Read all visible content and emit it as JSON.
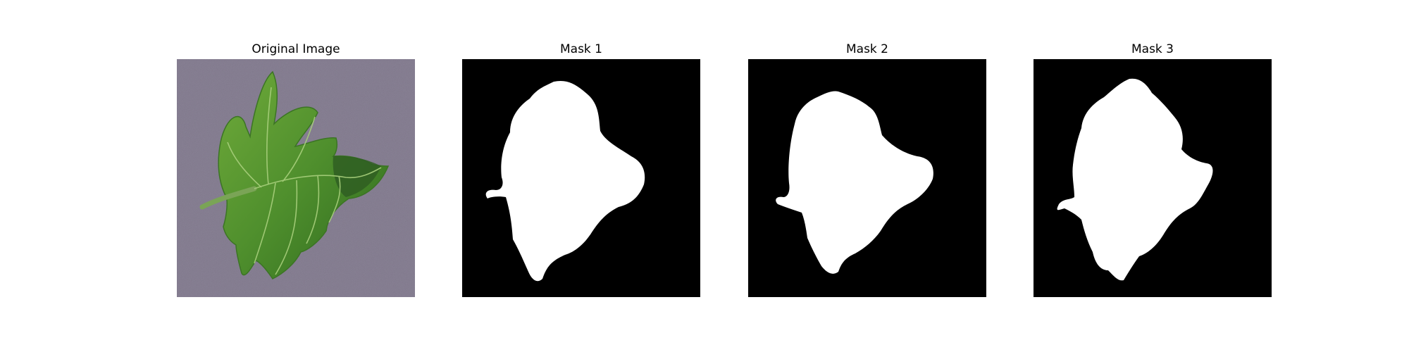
{
  "panels": [
    {
      "title": "Original Image"
    },
    {
      "title": "Mask 1"
    },
    {
      "title": "Mask 2"
    },
    {
      "title": "Mask 3"
    }
  ],
  "colors": {
    "background_surface": "#8a8296",
    "leaf_green": "#4f8f2d",
    "mask_foreground": "#ffffff",
    "mask_background": "#000000"
  }
}
